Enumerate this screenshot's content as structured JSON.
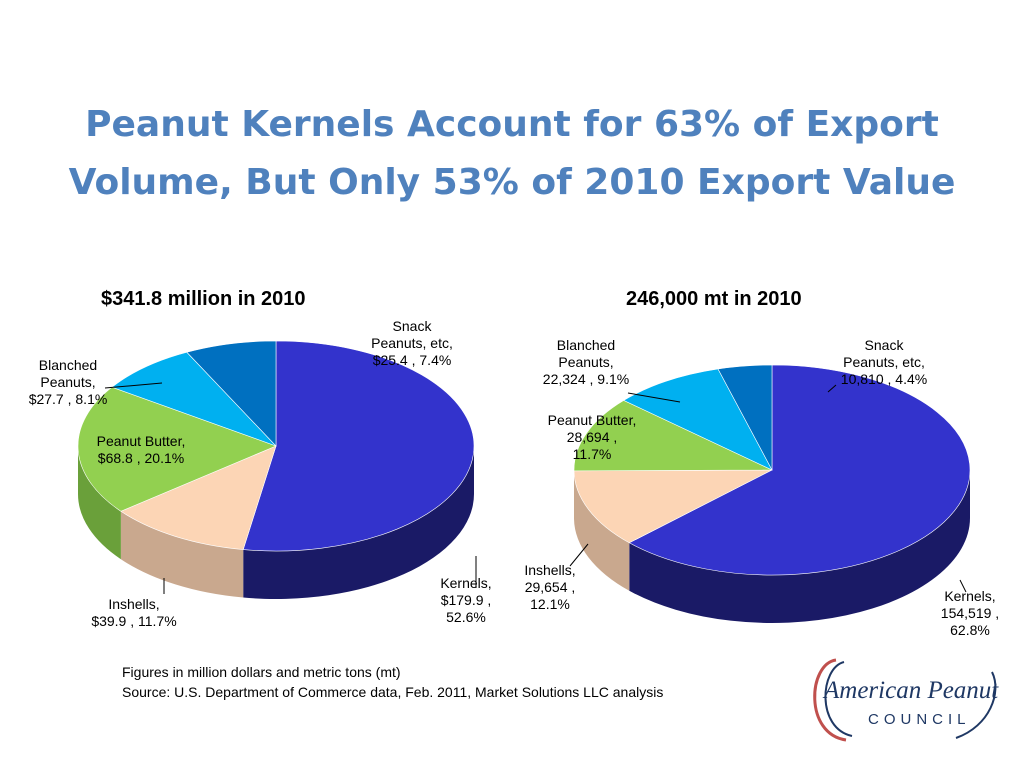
{
  "slide": {
    "title_line1": "Peanut Kernels Account for 63% of Export",
    "title_line2": "Volume, But Only 53% of 2010 Export Value",
    "footnote_1": "Figures in million dollars and metric tons (mt)",
    "footnote_2": "Source: U.S. Department of Commerce data, Feb. 2011, Market Solutions LLC analysis"
  },
  "logo": {
    "line1": "American Peanut",
    "line2": "COUNCIL"
  },
  "colors": {
    "title": "#4f81bd",
    "kernels": "#3333cc",
    "inshells": "#fcd5b5",
    "peanut_butter": "#92d050",
    "blanched": "#00b0f0",
    "snack": "#0070c0",
    "logo_blue": "#1f3864",
    "logo_red": "#c0504d"
  },
  "chart_data": [
    {
      "type": "pie",
      "title": "$341.8 million in 2010",
      "categories": [
        "Kernels",
        "Inshells",
        "Peanut Butter",
        "Blanched Peanuts",
        "Snack Peanuts, etc"
      ],
      "values": [
        179.9,
        39.9,
        68.8,
        27.7,
        25.4
      ],
      "percents": [
        52.6,
        11.7,
        20.1,
        8.1,
        7.4
      ],
      "labels": [
        [
          "Kernels,",
          "$179.9 ,",
          "52.6%"
        ],
        [
          "Inshells,",
          "$39.9 , 11.7%"
        ],
        [
          "Peanut Butter,",
          "$68.8 , 20.1%"
        ],
        [
          "Blanched",
          "Peanuts,",
          "$27.7 , 8.1%"
        ],
        [
          "Snack",
          "Peanuts, etc,",
          "$25.4 , 7.4%"
        ]
      ]
    },
    {
      "type": "pie",
      "title": "246,000 mt in 2010",
      "categories": [
        "Kernels",
        "Inshells",
        "Peanut Butter",
        "Blanched Peanuts",
        "Snack Peanuts, etc"
      ],
      "values": [
        154519,
        29654,
        28694,
        22324,
        10810
      ],
      "percents": [
        62.8,
        12.1,
        11.7,
        9.1,
        4.4
      ],
      "labels": [
        [
          "Kernels,",
          "154,519 ,",
          "62.8%"
        ],
        [
          "Inshells,",
          "29,654 ,",
          "12.1%"
        ],
        [
          "Peanut Butter,",
          "28,694 ,",
          "11.7%"
        ],
        [
          "Blanched",
          "Peanuts,",
          "22,324 , 9.1%"
        ],
        [
          "Snack",
          "Peanuts, etc,",
          "10,810 , 4.4%"
        ]
      ]
    }
  ]
}
